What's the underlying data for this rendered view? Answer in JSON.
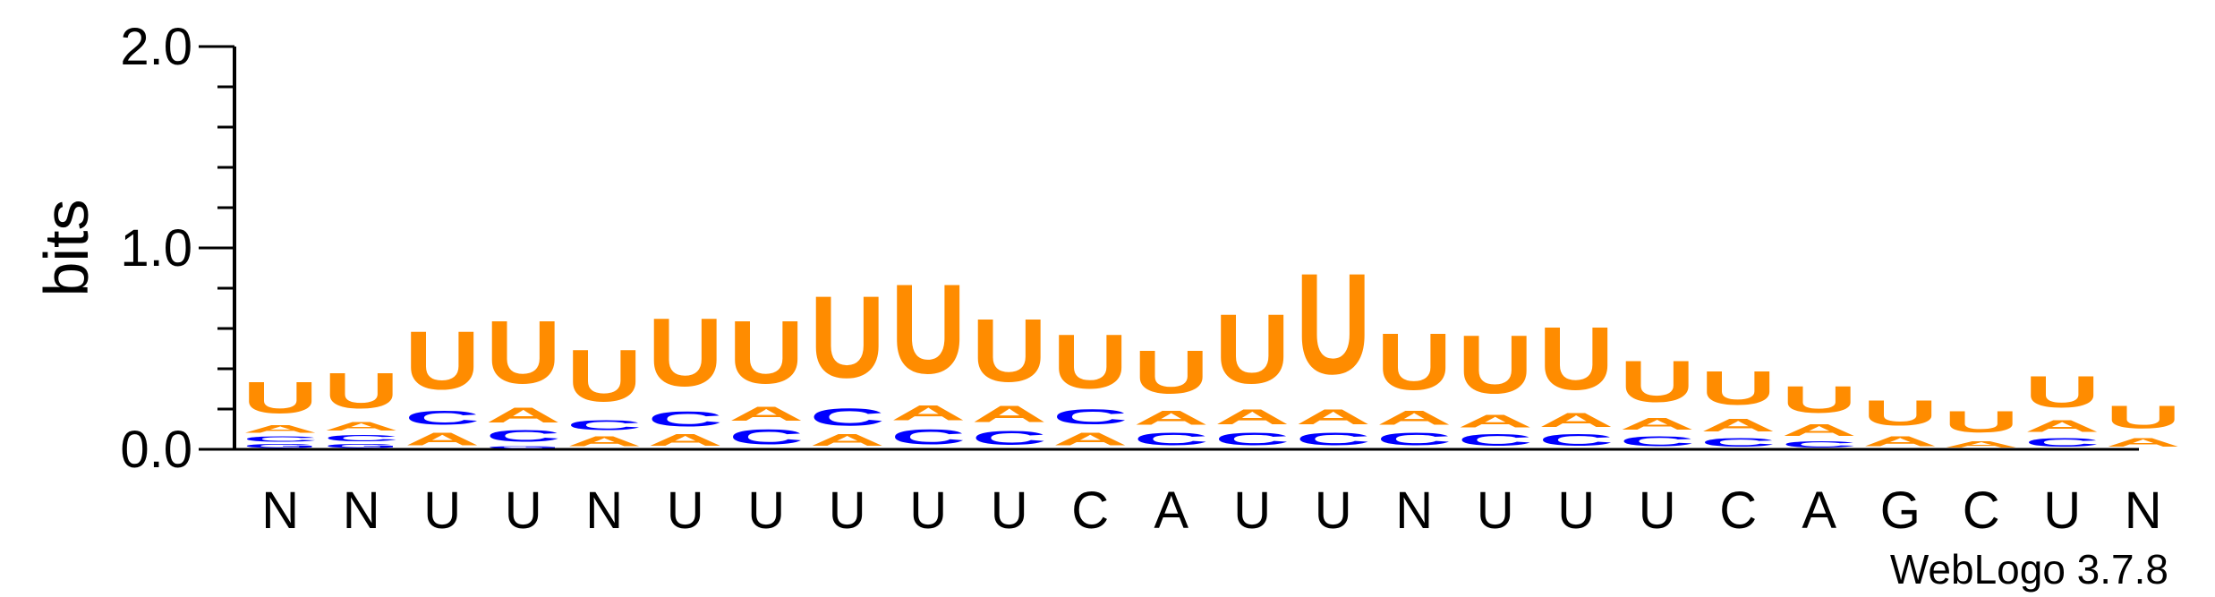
{
  "chart_data": {
    "type": "sequence_logo",
    "ylabel": "bits",
    "ylim": [
      0,
      2.0
    ],
    "yticks": [
      "0.0",
      "1.0",
      "2.0"
    ],
    "colors": {
      "U": "#FF8C00",
      "A": "#FF8C00",
      "C": "#0000FF",
      "G": "#0000FF"
    },
    "positions": [
      {
        "label": "N",
        "stack": [
          {
            "l": "G",
            "h": 0.03
          },
          {
            "l": "C",
            "h": 0.04
          },
          {
            "l": "A",
            "h": 0.06
          },
          {
            "l": "U",
            "h": 0.25
          }
        ]
      },
      {
        "label": "N",
        "stack": [
          {
            "l": "G",
            "h": 0.03
          },
          {
            "l": "C",
            "h": 0.05
          },
          {
            "l": "A",
            "h": 0.07
          },
          {
            "l": "U",
            "h": 0.28
          }
        ]
      },
      {
        "label": "U",
        "stack": [
          {
            "l": "A",
            "h": 0.1
          },
          {
            "l": "C",
            "h": 0.11
          },
          {
            "l": "U",
            "h": 0.46
          }
        ]
      },
      {
        "label": "U",
        "stack": [
          {
            "l": "G",
            "h": 0.02
          },
          {
            "l": "C",
            "h": 0.09
          },
          {
            "l": "A",
            "h": 0.12
          },
          {
            "l": "U",
            "h": 0.5
          }
        ]
      },
      {
        "label": "N",
        "stack": [
          {
            "l": "A",
            "h": 0.08
          },
          {
            "l": "C",
            "h": 0.08
          },
          {
            "l": "U",
            "h": 0.41
          }
        ]
      },
      {
        "label": "U",
        "stack": [
          {
            "l": "A",
            "h": 0.09
          },
          {
            "l": "C",
            "h": 0.12
          },
          {
            "l": "U",
            "h": 0.54
          }
        ]
      },
      {
        "label": "U",
        "stack": [
          {
            "l": "C",
            "h": 0.12
          },
          {
            "l": "A",
            "h": 0.11
          },
          {
            "l": "U",
            "h": 0.5
          }
        ]
      },
      {
        "label": "U",
        "stack": [
          {
            "l": "A",
            "h": 0.09
          },
          {
            "l": "C",
            "h": 0.14
          },
          {
            "l": "U",
            "h": 0.65
          }
        ]
      },
      {
        "label": "U",
        "stack": [
          {
            "l": "C",
            "h": 0.12
          },
          {
            "l": "A",
            "h": 0.12
          },
          {
            "l": "U",
            "h": 0.71
          }
        ]
      },
      {
        "label": "U",
        "stack": [
          {
            "l": "C",
            "h": 0.11
          },
          {
            "l": "A",
            "h": 0.13
          },
          {
            "l": "U",
            "h": 0.5
          }
        ]
      },
      {
        "label": "C",
        "stack": [
          {
            "l": "A",
            "h": 0.1
          },
          {
            "l": "C",
            "h": 0.12
          },
          {
            "l": "U",
            "h": 0.43
          }
        ]
      },
      {
        "label": "A",
        "stack": [
          {
            "l": "C",
            "h": 0.1
          },
          {
            "l": "A",
            "h": 0.11
          },
          {
            "l": "U",
            "h": 0.34
          }
        ]
      },
      {
        "label": "U",
        "stack": [
          {
            "l": "C",
            "h": 0.1
          },
          {
            "l": "A",
            "h": 0.12
          },
          {
            "l": "U",
            "h": 0.55
          }
        ]
      },
      {
        "label": "U",
        "stack": [
          {
            "l": "C",
            "h": 0.1
          },
          {
            "l": "A",
            "h": 0.12
          },
          {
            "l": "U",
            "h": 0.8
          }
        ]
      },
      {
        "label": "N",
        "stack": [
          {
            "l": "C",
            "h": 0.1
          },
          {
            "l": "A",
            "h": 0.11
          },
          {
            "l": "U",
            "h": 0.45
          }
        ]
      },
      {
        "label": "U",
        "stack": [
          {
            "l": "C",
            "h": 0.09
          },
          {
            "l": "A",
            "h": 0.1
          },
          {
            "l": "U",
            "h": 0.46
          }
        ]
      },
      {
        "label": "U",
        "stack": [
          {
            "l": "C",
            "h": 0.09
          },
          {
            "l": "A",
            "h": 0.11
          },
          {
            "l": "U",
            "h": 0.5
          }
        ]
      },
      {
        "label": "U",
        "stack": [
          {
            "l": "C",
            "h": 0.08
          },
          {
            "l": "A",
            "h": 0.09
          },
          {
            "l": "U",
            "h": 0.33
          }
        ]
      },
      {
        "label": "C",
        "stack": [
          {
            "l": "C",
            "h": 0.07
          },
          {
            "l": "A",
            "h": 0.1
          },
          {
            "l": "U",
            "h": 0.27
          }
        ]
      },
      {
        "label": "A",
        "stack": [
          {
            "l": "C",
            "h": 0.05
          },
          {
            "l": "A",
            "h": 0.09
          },
          {
            "l": "U",
            "h": 0.21
          }
        ]
      },
      {
        "label": "G",
        "stack": [
          {
            "l": "A",
            "h": 0.08
          },
          {
            "l": "U",
            "h": 0.2
          }
        ]
      },
      {
        "label": "C",
        "stack": [
          {
            "l": "A",
            "h": 0.05
          },
          {
            "l": "U",
            "h": 0.17
          }
        ]
      },
      {
        "label": "U",
        "stack": [
          {
            "l": "C",
            "h": 0.07
          },
          {
            "l": "A",
            "h": 0.09
          },
          {
            "l": "U",
            "h": 0.25
          }
        ]
      },
      {
        "label": "N",
        "stack": [
          {
            "l": "A",
            "h": 0.07
          },
          {
            "l": "U",
            "h": 0.18
          }
        ]
      }
    ]
  },
  "footer": {
    "version": "WebLogo 3.7.8"
  }
}
